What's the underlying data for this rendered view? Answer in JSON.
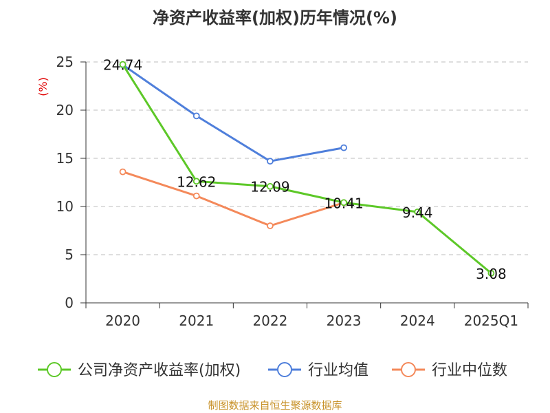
{
  "chart_data": {
    "type": "line",
    "title": "净资产收益率(加权)历年情况(%)",
    "ylabel": "(%)",
    "xlabel": "",
    "categories": [
      "2020",
      "2021",
      "2022",
      "2023",
      "2024",
      "2025Q1"
    ],
    "ylim": [
      0,
      25
    ],
    "yticks": [
      0,
      5,
      10,
      15,
      20,
      25
    ],
    "grid": true,
    "legend_position": "bottom",
    "series": [
      {
        "name": "公司净资产收益率(加权)",
        "color": "#5dc828",
        "values": [
          24.74,
          12.62,
          12.09,
          10.41,
          9.44,
          3.08
        ],
        "labels": [
          "24.74",
          "12.62",
          "12.09",
          "10.41",
          "9.44",
          "3.08"
        ]
      },
      {
        "name": "行业均值",
        "color": "#4f7fdb",
        "values": [
          24.7,
          19.4,
          14.7,
          16.1,
          null,
          null
        ]
      },
      {
        "name": "行业中位数",
        "color": "#f4895a",
        "values": [
          13.6,
          11.1,
          8.0,
          10.4,
          null,
          null
        ]
      }
    ]
  },
  "source": "制图数据来自恒生聚源数据库"
}
